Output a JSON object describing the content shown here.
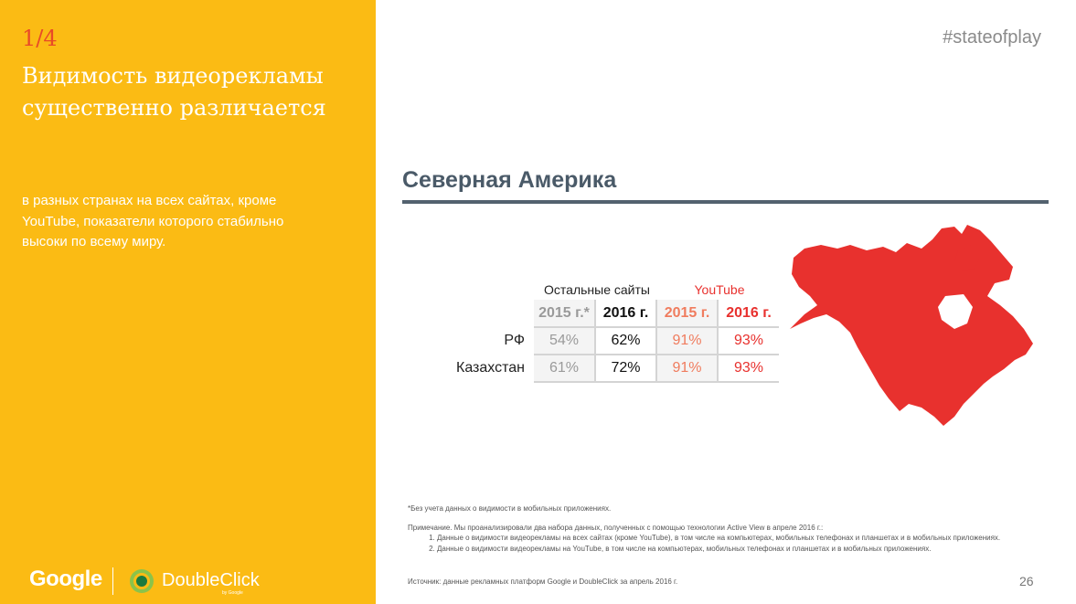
{
  "sidebar": {
    "step": "1/4",
    "headline": "Видимость видеорекламы существенно различается",
    "subtext": "в разных странах на всех сайтах, кроме YouTube, показатели которого стабильно высоки по всему миру.",
    "logo_google": "Google",
    "logo_doubleclick": "DoubleClick",
    "logo_doubleclick_by": "by Google"
  },
  "header": {
    "hashtag": "#stateofplay"
  },
  "region": {
    "title": "Северная Америка"
  },
  "table": {
    "group_other": "Остальные сайты",
    "group_youtube": "YouTube",
    "columns": [
      "2015 г.*",
      "2016 г.",
      "2015 г.",
      "2016 г."
    ],
    "rows": [
      {
        "label": "РФ",
        "values": [
          "54%",
          "62%",
          "91%",
          "93%"
        ]
      },
      {
        "label": "Казахстан",
        "values": [
          "61%",
          "72%",
          "91%",
          "93%"
        ]
      }
    ]
  },
  "map": {
    "icon": "north-america-map",
    "color": "#E8312E"
  },
  "footnotes": {
    "star": "*Без учета данных о видимости в мобильных приложениях.",
    "note": "Примечание. Мы проанализировали два набора данных, полученных с помощью технологии Active View в апреле 2016 г.:",
    "items": [
      "Данные о видимости видеорекламы на всех сайтах (кроме YouTube), в том числе на компьютерах, мобильных телефонах и планшетах и в мобильных приложениях.",
      "Данные о видимости видеорекламы на YouTube, в том числе на компьютерах, мобильных телефонах и планшетах и в мобильных приложениях."
    ],
    "source": "Источник: данные рекламных платформ Google и DoubleClick за апрель 2016 г."
  },
  "page_number": "26",
  "colors": {
    "sidebar": "#FBBB14",
    "accent_red": "#E8312E",
    "step": "#E84A27",
    "rule": "#53626f"
  }
}
